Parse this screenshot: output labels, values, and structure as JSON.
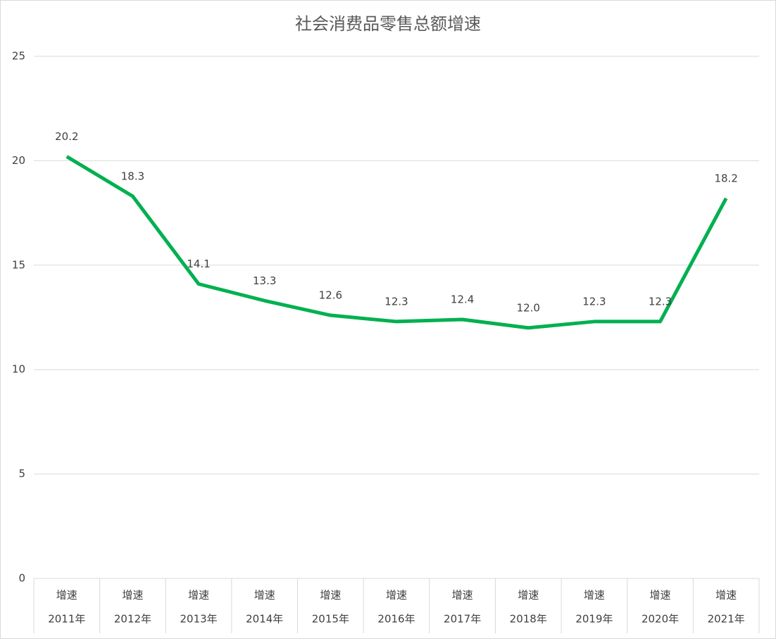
{
  "chart_data": {
    "type": "line",
    "title": "社会消费品零售总额增速",
    "categories": [
      "2011年",
      "2012年",
      "2013年",
      "2014年",
      "2015年",
      "2016年",
      "2017年",
      "2018年",
      "2019年",
      "2020年",
      "2021年"
    ],
    "series": [
      {
        "name": "增速",
        "color": "#00b050",
        "values": [
          20.2,
          18.3,
          14.1,
          13.3,
          12.6,
          12.3,
          12.4,
          12.0,
          12.3,
          12.3,
          18.2
        ],
        "value_labels": [
          "20.2",
          "18.3",
          "14.1",
          "13.3",
          "12.6",
          "12.3",
          "12.4",
          "12.0",
          "12.3",
          "12.3",
          "18.2"
        ]
      }
    ],
    "ylim": [
      0,
      25
    ],
    "yticks": [
      0,
      5,
      10,
      15,
      20,
      25
    ],
    "grid": true
  }
}
